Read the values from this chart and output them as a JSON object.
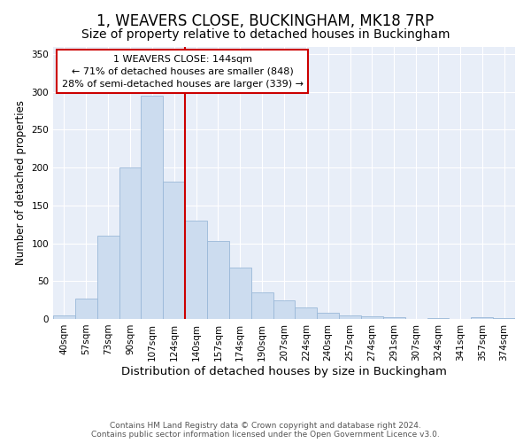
{
  "title": "1, WEAVERS CLOSE, BUCKINGHAM, MK18 7RP",
  "subtitle": "Size of property relative to detached houses in Buckingham",
  "xlabel": "Distribution of detached houses by size in Buckingham",
  "ylabel": "Number of detached properties",
  "categories": [
    "40sqm",
    "57sqm",
    "73sqm",
    "90sqm",
    "107sqm",
    "124sqm",
    "140sqm",
    "157sqm",
    "174sqm",
    "190sqm",
    "207sqm",
    "224sqm",
    "240sqm",
    "257sqm",
    "274sqm",
    "291sqm",
    "307sqm",
    "324sqm",
    "341sqm",
    "357sqm",
    "374sqm"
  ],
  "values": [
    5,
    27,
    110,
    200,
    295,
    182,
    130,
    103,
    68,
    35,
    25,
    15,
    8,
    5,
    3,
    2,
    0,
    1,
    0,
    2,
    1
  ],
  "bar_color": "#ccdcef",
  "bar_edge_color": "#9ab8d8",
  "highlight_line_index": 6,
  "highlight_line_color": "#cc0000",
  "annotation_text": "1 WEAVERS CLOSE: 144sqm\n← 71% of detached houses are smaller (848)\n28% of semi-detached houses are larger (339) →",
  "annotation_box_color": "#cc0000",
  "ylim": [
    0,
    360
  ],
  "yticks": [
    0,
    50,
    100,
    150,
    200,
    250,
    300,
    350
  ],
  "plot_bg_color": "#e8eef8",
  "footer": "Contains HM Land Registry data © Crown copyright and database right 2024.\nContains public sector information licensed under the Open Government Licence v3.0.",
  "title_fontsize": 12,
  "subtitle_fontsize": 10,
  "xlabel_fontsize": 9.5,
  "ylabel_fontsize": 8.5,
  "tick_fontsize": 7.5,
  "annotation_fontsize": 8,
  "footer_fontsize": 6.5
}
